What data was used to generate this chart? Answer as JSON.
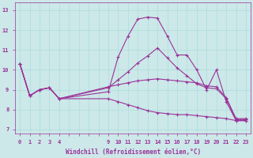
{
  "xlabel": "Windchill (Refroidissement éolien,°C)",
  "bg_color": "#cce8e8",
  "line_color": "#993399",
  "grid_color": "#aadddd",
  "xlim": [
    -0.5,
    23.5
  ],
  "ylim": [
    6.8,
    13.4
  ],
  "yticks": [
    7,
    8,
    9,
    10,
    11,
    12,
    13
  ],
  "xticks_all": [
    0,
    1,
    2,
    3,
    4,
    5,
    6,
    7,
    8,
    9,
    10,
    11,
    12,
    13,
    14,
    15,
    16,
    17,
    18,
    19,
    20,
    21,
    22,
    23
  ],
  "xticks_labeled": [
    0,
    1,
    2,
    3,
    4,
    9,
    10,
    11,
    12,
    13,
    14,
    15,
    16,
    17,
    18,
    19,
    20,
    21,
    22,
    23
  ],
  "lines": [
    {
      "x": [
        0,
        1,
        2,
        3,
        4,
        9,
        10,
        11,
        12,
        13,
        14,
        15,
        16,
        17,
        18,
        19,
        20,
        21,
        22,
        23
      ],
      "y": [
        10.3,
        8.7,
        9.0,
        9.1,
        8.55,
        8.9,
        10.65,
        11.7,
        12.55,
        12.65,
        12.6,
        11.7,
        10.75,
        10.75,
        10.0,
        9.0,
        10.0,
        8.4,
        7.45,
        7.45
      ]
    },
    {
      "x": [
        0,
        1,
        2,
        3,
        4,
        9,
        10,
        11,
        12,
        13,
        14,
        15,
        16,
        17,
        18,
        19,
        20,
        21,
        22,
        23
      ],
      "y": [
        10.3,
        8.7,
        9.0,
        9.1,
        8.55,
        9.1,
        9.5,
        9.9,
        10.35,
        10.7,
        11.1,
        10.6,
        10.1,
        9.7,
        9.3,
        9.1,
        9.05,
        8.55,
        7.5,
        7.5
      ]
    },
    {
      "x": [
        0,
        1,
        2,
        3,
        4,
        9,
        10,
        11,
        12,
        13,
        14,
        15,
        16,
        17,
        18,
        19,
        20,
        21,
        22,
        23
      ],
      "y": [
        10.3,
        8.7,
        9.0,
        9.1,
        8.55,
        9.15,
        9.25,
        9.35,
        9.45,
        9.5,
        9.55,
        9.5,
        9.45,
        9.4,
        9.35,
        9.2,
        9.15,
        8.6,
        7.55,
        7.55
      ]
    },
    {
      "x": [
        0,
        1,
        2,
        3,
        4,
        9,
        10,
        11,
        12,
        13,
        14,
        15,
        16,
        17,
        18,
        19,
        20,
        21,
        22,
        23
      ],
      "y": [
        10.3,
        8.7,
        9.0,
        9.1,
        8.55,
        8.55,
        8.4,
        8.25,
        8.1,
        7.95,
        7.85,
        7.8,
        7.75,
        7.75,
        7.7,
        7.65,
        7.6,
        7.55,
        7.45,
        7.45
      ]
    }
  ],
  "marker": "+",
  "markersize": 3,
  "markeredgewidth": 0.8,
  "linewidth": 0.8,
  "tick_fontsize": 5,
  "xlabel_fontsize": 5.5
}
